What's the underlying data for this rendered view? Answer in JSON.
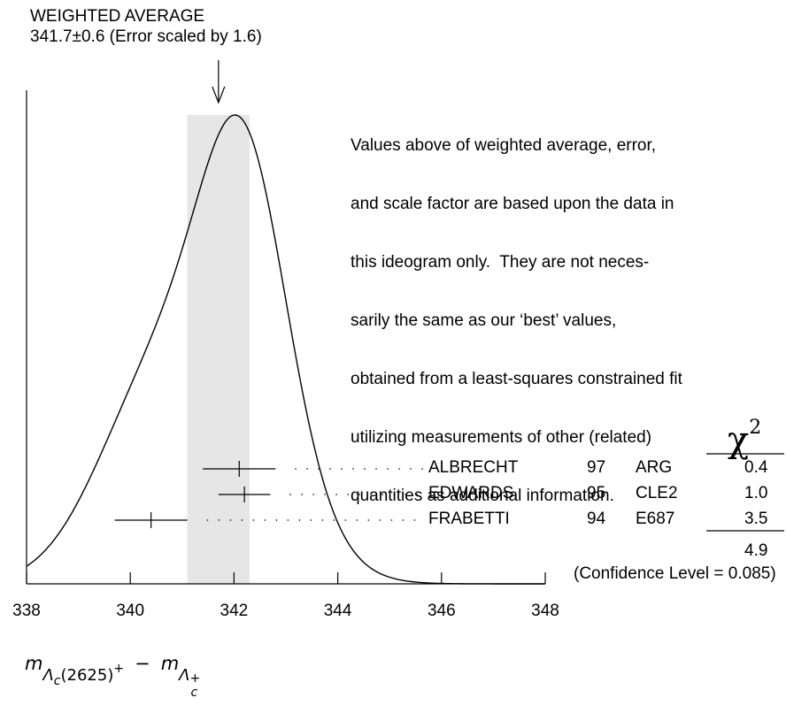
{
  "header": {
    "title": "WEIGHTED AVERAGE",
    "subtitle": "341.7±0.6 (Error scaled by 1.6)"
  },
  "note_lines": [
    "Values above of weighted average, error,",
    "and scale factor are based upon the data in",
    "this ideogram only.  They are not neces-",
    "sarily the same as our ‘best’ values,",
    "obtained from a least-squares constrained fit",
    "utilizing measurements of other (related)",
    "quantities as additional information."
  ],
  "chi2_header": "χ",
  "chi2_superscript": "2",
  "chi2_total": "4.9",
  "confidence": "(Confidence Level = 0.085)",
  "xlabel": {
    "m": "m",
    "sub1": "Λ",
    "sub1c": "c",
    "sub1rest": "(2625)",
    "sup1": "+",
    "minus": "−",
    "m2": "m",
    "sub2": "Λ",
    "sub2sup": "+",
    "sub2c": "c"
  },
  "chart_data": {
    "type": "ideogram",
    "xlim": [
      338,
      348
    ],
    "ticks": [
      "338",
      "340",
      "342",
      "344",
      "346",
      "348"
    ],
    "weighted_average": {
      "value": 341.7,
      "error": 0.6,
      "scale_factor": 1.6
    },
    "measurements": [
      {
        "author": "ALBRECHT",
        "year": "97",
        "experiment": "ARG",
        "value": 342.1,
        "error": 0.7,
        "chi2": "0.4"
      },
      {
        "author": "EDWARDS",
        "year": "95",
        "experiment": "CLE2",
        "value": 342.2,
        "error": 0.5,
        "chi2": "1.0"
      },
      {
        "author": "FRABETTI",
        "year": "94",
        "experiment": "E687",
        "value": 340.4,
        "error": 0.7,
        "chi2": "3.5"
      }
    ]
  }
}
